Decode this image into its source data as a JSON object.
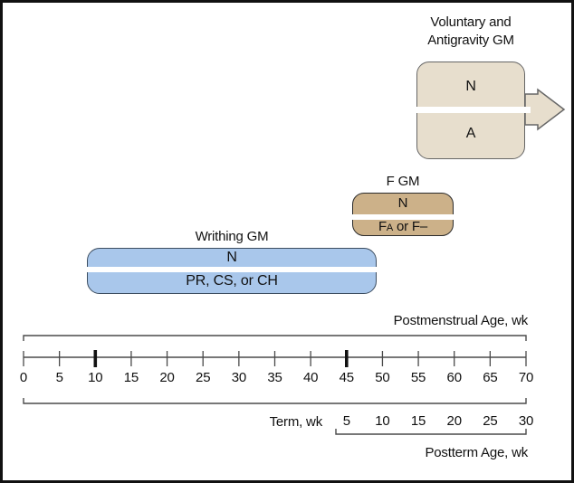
{
  "colors": {
    "voluntary-fill": "#e7decd",
    "voluntary-border": "#666666",
    "fgm-fill": "#ccb189",
    "fgm-border": "#2b2b2b",
    "writhing-fill": "#a9c7eb",
    "writhing-border": "#3c4d60",
    "axis-line": "#4a4a4a",
    "bold-tick": "#111111"
  },
  "tracks": {
    "voluntary": {
      "title_line1": "Voluntary and",
      "title_line2": "Antigravity GM",
      "normal": "N",
      "abnormal": "A"
    },
    "fidgety": {
      "title": "F GM",
      "normal": "N",
      "abnormal_prefix": "F",
      "abnormal_smallcap": "A",
      "abnormal_suffix": " or F–"
    },
    "writhing": {
      "title": "Writhing GM",
      "normal": "N",
      "abnormal": "PR, CS, or CH"
    }
  },
  "axis": {
    "title": "Postmenstrual Age, wk",
    "min": 0,
    "max": 70,
    "step": 5,
    "ticks": [
      0,
      5,
      10,
      15,
      20,
      25,
      30,
      35,
      40,
      45,
      50,
      55,
      60,
      65,
      70
    ],
    "bold_ticks": [
      10,
      45
    ],
    "term_label": "Term, wk",
    "term_ticks": [
      5,
      10,
      15,
      20,
      25,
      30
    ],
    "postterm_label": "Postterm Age, wk"
  },
  "chart_data": {
    "type": "bar",
    "variant": "horizontal-timeline-spans",
    "title": "",
    "xlabel": "Postmenstrual Age, wk",
    "xlim": [
      0,
      70
    ],
    "x_tick_step": 5,
    "emphasized_x_ticks": [
      10,
      45
    ],
    "secondary_axis": {
      "label": "Term, wk",
      "bracket_label": "Postterm Age, wk",
      "ticks": [
        5,
        10,
        15,
        20,
        25,
        30
      ],
      "maps_to_postmenstrual_wk": [
        45,
        50,
        55,
        60,
        65,
        70
      ]
    },
    "series": [
      {
        "name": "Writhing GM",
        "normal_row": "N",
        "abnormal_row": "PR, CS, or CH",
        "span_postmenstrual_wk": [
          9,
          49
        ]
      },
      {
        "name": "F GM",
        "normal_row": "N",
        "abnormal_row": "FA or F–",
        "span_postmenstrual_wk": [
          46,
          60
        ]
      },
      {
        "name": "Voluntary and Antigravity GM",
        "normal_row": "N",
        "abnormal_row": "A",
        "span_postmenstrual_wk": [
          55,
          70
        ],
        "extends_beyond_axis": true
      }
    ]
  }
}
